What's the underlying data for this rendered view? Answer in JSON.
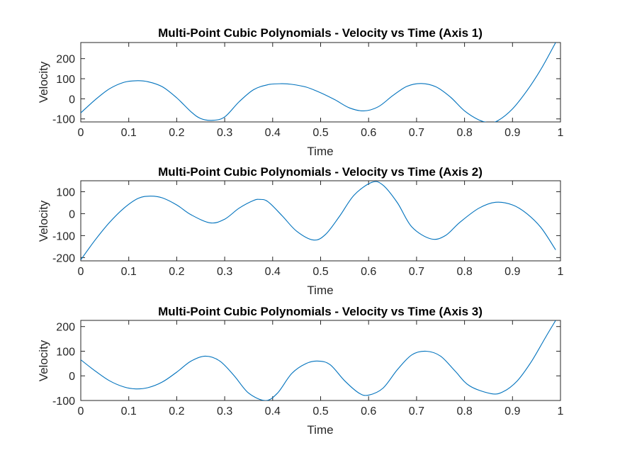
{
  "figure": {
    "background": "#ffffff"
  },
  "chart_data": [
    {
      "type": "line",
      "title": "Multi-Point Cubic Polynomials - Velocity vs Time (Axis 1)",
      "xlabel": "Time",
      "ylabel": "Velocity",
      "xlim": [
        0,
        1
      ],
      "ylim": [
        -115,
        280
      ],
      "xticks": [
        "0",
        "0.1",
        "0.2",
        "0.3",
        "0.4",
        "0.5",
        "0.6",
        "0.7",
        "0.8",
        "0.9",
        "1"
      ],
      "xtick_values": [
        0,
        0.1,
        0.2,
        0.3,
        0.4,
        0.5,
        0.6,
        0.7,
        0.8,
        0.9,
        1
      ],
      "yticks": [
        "-100",
        "0",
        "100",
        "200"
      ],
      "ytick_values": [
        -100,
        0,
        100,
        200
      ],
      "grid": false,
      "series": [
        {
          "color": "#0072bd",
          "x": [
            0,
            0.03,
            0.06,
            0.09,
            0.115,
            0.14,
            0.17,
            0.2,
            0.23,
            0.25,
            0.275,
            0.3,
            0.33,
            0.36,
            0.39,
            0.418,
            0.44,
            0.47,
            0.5,
            0.53,
            0.56,
            0.59,
            0.62,
            0.65,
            0.68,
            0.71,
            0.74,
            0.77,
            0.8,
            0.83,
            0.852,
            0.87,
            0.9,
            0.93,
            0.96,
            0.99
          ],
          "y": [
            -70,
            -5,
            50,
            82,
            90,
            85,
            60,
            5,
            -65,
            -98,
            -107,
            -90,
            -15,
            45,
            70,
            75,
            72,
            58,
            30,
            -5,
            -45,
            -60,
            -40,
            15,
            62,
            76,
            60,
            10,
            -60,
            -105,
            -118,
            -108,
            -50,
            40,
            150,
            280
          ]
        }
      ]
    },
    {
      "type": "line",
      "title": "Multi-Point Cubic Polynomials - Velocity vs Time (Axis 2)",
      "xlabel": "Time",
      "ylabel": "Velocity",
      "xlim": [
        0,
        1
      ],
      "ylim": [
        -215,
        150
      ],
      "xticks": [
        "0",
        "0.1",
        "0.2",
        "0.3",
        "0.4",
        "0.5",
        "0.6",
        "0.7",
        "0.8",
        "0.9",
        "1"
      ],
      "xtick_values": [
        0,
        0.1,
        0.2,
        0.3,
        0.4,
        0.5,
        0.6,
        0.7,
        0.8,
        0.9,
        1
      ],
      "yticks": [
        "-200",
        "-100",
        "0",
        "100"
      ],
      "ytick_values": [
        -200,
        -100,
        0,
        100
      ],
      "grid": false,
      "series": [
        {
          "color": "#0072bd",
          "x": [
            0,
            0.03,
            0.06,
            0.09,
            0.12,
            0.145,
            0.17,
            0.2,
            0.23,
            0.27,
            0.3,
            0.33,
            0.36,
            0.373,
            0.39,
            0.42,
            0.45,
            0.485,
            0.51,
            0.54,
            0.57,
            0.607,
            0.63,
            0.66,
            0.69,
            0.73,
            0.76,
            0.79,
            0.83,
            0.865,
            0.9,
            0.93,
            0.96,
            0.99
          ],
          "y": [
            -210,
            -120,
            -40,
            25,
            70,
            80,
            72,
            40,
            -5,
            -42,
            -25,
            25,
            60,
            65,
            55,
            -10,
            -80,
            -120,
            -95,
            -10,
            85,
            143,
            130,
            50,
            -60,
            -115,
            -100,
            -40,
            25,
            52,
            40,
            0,
            -65,
            -165
          ]
        }
      ]
    },
    {
      "type": "line",
      "title": "Multi-Point Cubic Polynomials - Velocity vs Time (Axis 3)",
      "xlabel": "Time",
      "ylabel": "Velocity",
      "xlim": [
        0,
        1
      ],
      "ylim": [
        -100,
        225
      ],
      "xticks": [
        "0",
        "0.1",
        "0.2",
        "0.3",
        "0.4",
        "0.5",
        "0.6",
        "0.7",
        "0.8",
        "0.9",
        "1"
      ],
      "xtick_values": [
        0,
        0.1,
        0.2,
        0.3,
        0.4,
        0.5,
        0.6,
        0.7,
        0.8,
        0.9,
        1
      ],
      "yticks": [
        "-100",
        "0",
        "100",
        "200"
      ],
      "ytick_values": [
        -100,
        0,
        100,
        200
      ],
      "grid": false,
      "series": [
        {
          "color": "#0072bd",
          "x": [
            0,
            0.03,
            0.06,
            0.09,
            0.115,
            0.14,
            0.17,
            0.2,
            0.23,
            0.26,
            0.29,
            0.32,
            0.35,
            0.385,
            0.41,
            0.44,
            0.47,
            0.495,
            0.52,
            0.55,
            0.58,
            0.6,
            0.63,
            0.66,
            0.69,
            0.72,
            0.75,
            0.78,
            0.81,
            0.855,
            0.88,
            0.91,
            0.94,
            0.97,
            0.99
          ],
          "y": [
            65,
            20,
            -20,
            -45,
            -53,
            -48,
            -25,
            15,
            60,
            80,
            60,
            0,
            -70,
            -100,
            -70,
            10,
            50,
            60,
            45,
            -20,
            -70,
            -78,
            -50,
            25,
            85,
            100,
            80,
            20,
            -40,
            -72,
            -65,
            -20,
            60,
            160,
            225
          ]
        }
      ]
    }
  ]
}
